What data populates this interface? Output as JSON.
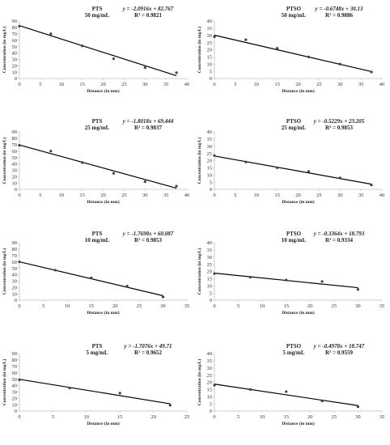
{
  "chart_data": [
    {
      "type": "scatter",
      "title": "PTS",
      "subtitle": "50 mg/mL",
      "equation": "y = -2.0916x + 82.767",
      "r2": "R² = 0.9821",
      "xlabel": "Distance (in mm)",
      "ylabel": "Concentration (in mg/L)",
      "xlim": [
        0,
        40
      ],
      "ylim": [
        0,
        90
      ],
      "xticks": [
        0,
        5,
        10,
        15,
        20,
        25,
        30,
        35,
        40
      ],
      "yticks": [
        0,
        10,
        20,
        30,
        40,
        50,
        60,
        70,
        80,
        90
      ],
      "x": [
        0,
        7.5,
        15,
        22.5,
        30,
        37.5
      ],
      "y": [
        82,
        70,
        51,
        31,
        17,
        9
      ],
      "fit": {
        "slope": -2.0916,
        "intercept": 82.767
      }
    },
    {
      "type": "scatter",
      "title": "PTSO",
      "subtitle": "50 mg/mL",
      "equation": "y = -0.6748x + 30.13",
      "r2": "R² = 0.9886",
      "xlabel": "Distance (in mm)",
      "ylabel": "Concentration (in mg/L)",
      "xlim": [
        0,
        40
      ],
      "ylim": [
        0,
        40
      ],
      "xticks": [
        0,
        5,
        10,
        15,
        20,
        25,
        30,
        35,
        40
      ],
      "yticks": [
        0,
        5,
        10,
        15,
        20,
        25,
        30,
        35,
        40
      ],
      "x": [
        0,
        7.5,
        15,
        22.5,
        30,
        37.5
      ],
      "y": [
        29,
        27,
        21,
        15,
        10,
        4.5
      ],
      "fit": {
        "slope": -0.6748,
        "intercept": 30.13
      }
    },
    {
      "type": "scatter",
      "title": "PTS",
      "subtitle": "25 mg/mL",
      "equation": "y = -1.8018x + 69.444",
      "r2": "R² = 0.9837",
      "xlabel": "Distance (in mm)",
      "ylabel": "Concentration (in mg/L)",
      "xlim": [
        0,
        40
      ],
      "ylim": [
        0,
        90
      ],
      "xticks": [
        0,
        5,
        10,
        15,
        20,
        25,
        30,
        35,
        40
      ],
      "yticks": [
        0,
        10,
        20,
        30,
        40,
        50,
        60,
        70,
        80,
        90
      ],
      "x": [
        0,
        7.5,
        15,
        22.5,
        30,
        37.5
      ],
      "y": [
        69,
        60,
        42,
        25,
        12,
        5
      ],
      "fit": {
        "slope": -1.8018,
        "intercept": 69.444
      }
    },
    {
      "type": "scatter",
      "title": "PTSO",
      "subtitle": "25 mg/mL",
      "equation": "y = -0.5229x + 23.205",
      "r2": "R² = 0.9853",
      "xlabel": "Distance (in mm)",
      "ylabel": "Concentration (in mg/L)",
      "xlim": [
        0,
        40
      ],
      "ylim": [
        0,
        40
      ],
      "xticks": [
        0,
        5,
        10,
        15,
        20,
        25,
        30,
        35,
        40
      ],
      "yticks": [
        0,
        5,
        10,
        15,
        20,
        25,
        30,
        35,
        40
      ],
      "x": [
        0,
        7.5,
        15,
        22.5,
        30,
        37.5
      ],
      "y": [
        23.5,
        19,
        15,
        12.5,
        8,
        3
      ],
      "fit": {
        "slope": -0.5229,
        "intercept": 23.205
      }
    },
    {
      "type": "scatter",
      "title": "PTS",
      "subtitle": "10 mg/mL",
      "equation": "y = -1.7698x + 60.087",
      "r2": "R² = 0.9853",
      "xlabel": "Distance (in mm)",
      "ylabel": "Concentration (in mg/L)",
      "xlim": [
        0,
        35
      ],
      "ylim": [
        0,
        90
      ],
      "xticks": [
        0,
        5,
        10,
        15,
        20,
        25,
        30,
        35
      ],
      "yticks": [
        0,
        10,
        20,
        30,
        40,
        50,
        60,
        70,
        80,
        90
      ],
      "x": [
        0,
        7.5,
        15,
        22.5,
        30
      ],
      "y": [
        60,
        47,
        35,
        22,
        5
      ],
      "fit": {
        "slope": -1.7698,
        "intercept": 60.087
      }
    },
    {
      "type": "scatter",
      "title": "PTSO",
      "subtitle": "10 mg/mL",
      "equation": "y = -0.3364x + 18.793",
      "r2": "R² = 0.9334",
      "xlabel": "Distance (in mm)",
      "ylabel": "Concentration (in mg/L)",
      "xlim": [
        0,
        35
      ],
      "ylim": [
        0,
        40
      ],
      "xticks": [
        0,
        5,
        10,
        15,
        20,
        25,
        30,
        35
      ],
      "yticks": [
        0,
        5,
        10,
        15,
        20,
        25,
        30,
        35,
        40
      ],
      "x": [
        0,
        7.5,
        15,
        22.5,
        30
      ],
      "y": [
        18.5,
        16,
        14,
        13,
        7.5
      ],
      "fit": {
        "slope": -0.3364,
        "intercept": 18.793
      }
    },
    {
      "type": "scatter",
      "title": "PTS",
      "subtitle": "5 mg/mL",
      "equation": "y = -1.7076x + 49.71",
      "r2": "R² = 0.9652",
      "xlabel": "Distance (in mm)",
      "ylabel": "Concentration (in mg/L)",
      "xlim": [
        0,
        25
      ],
      "ylim": [
        0,
        90
      ],
      "xticks": [
        0,
        5,
        10,
        15,
        20,
        25
      ],
      "yticks": [
        0,
        10,
        20,
        30,
        40,
        50,
        60,
        70,
        80,
        90
      ],
      "x": [
        0,
        7.5,
        15,
        22.5
      ],
      "y": [
        49,
        36,
        28,
        9
      ],
      "fit": {
        "slope": -1.7076,
        "intercept": 49.71
      }
    },
    {
      "type": "scatter",
      "title": "PTSO",
      "subtitle": "5 mg/mL",
      "equation": "y = -0.4978x + 18.747",
      "r2": "R² = 0.9559",
      "xlabel": "Distance (in mm)",
      "ylabel": "Concentration (in mg/L)",
      "xlim": [
        0,
        35
      ],
      "ylim": [
        0,
        40
      ],
      "xticks": [
        0,
        5,
        10,
        15,
        20,
        25,
        30,
        35
      ],
      "yticks": [
        0,
        5,
        10,
        15,
        20,
        25,
        30,
        35,
        40
      ],
      "x": [
        0,
        7.5,
        15,
        22.5,
        30
      ],
      "y": [
        18,
        15,
        13.5,
        7,
        3
      ],
      "fit": {
        "slope": -0.4978,
        "intercept": 18.747
      }
    }
  ],
  "colors": {
    "marker": "#1f4e4e",
    "line": "#000000",
    "axis": "#bfbfbf"
  }
}
